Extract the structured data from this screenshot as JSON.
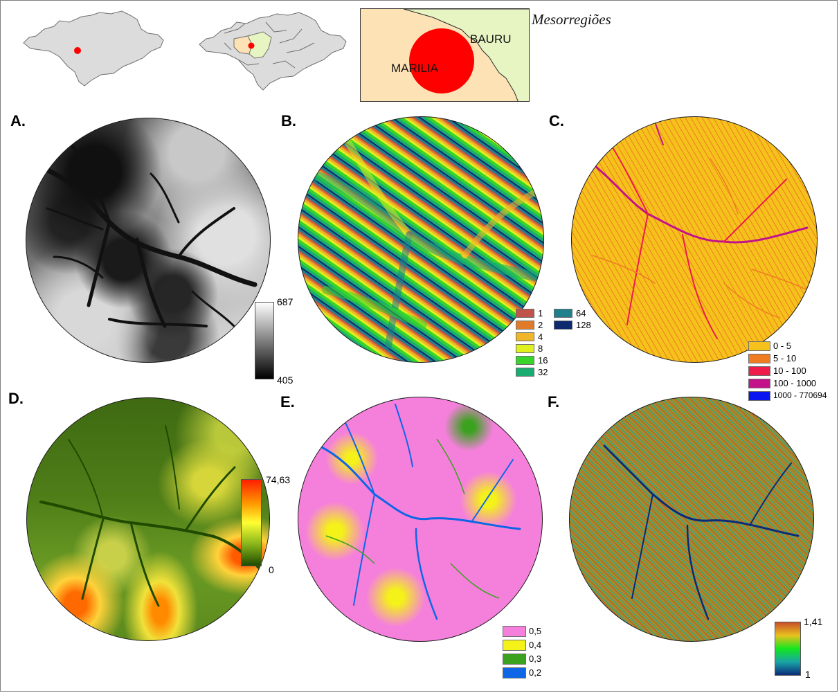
{
  "inset": {
    "title": "Mesorregiões",
    "region_labels": [
      "BAURU",
      "MARILIA"
    ],
    "colors": {
      "marilia": "#fde2b5",
      "bauru": "#e6f5c2",
      "marker": "#ff0000",
      "state": "#dcdcdc"
    }
  },
  "panels": {
    "A": {
      "letter": "A.",
      "legend_type": "ramp",
      "ramp_max": "687",
      "ramp_min": "405",
      "ramp_colors": [
        "#ffffff",
        "#000000"
      ]
    },
    "B": {
      "letter": "B.",
      "legend_type": "classes",
      "classes": [
        {
          "label": "1",
          "color": "#c0544a"
        },
        {
          "label": "2",
          "color": "#e07b2a"
        },
        {
          "label": "4",
          "color": "#f0b62a"
        },
        {
          "label": "8",
          "color": "#dff01e"
        },
        {
          "label": "16",
          "color": "#38d42a"
        },
        {
          "label": "32",
          "color": "#1aac70"
        },
        {
          "label": "64",
          "color": "#1f7f8c"
        },
        {
          "label": "128",
          "color": "#0d2a6e"
        }
      ]
    },
    "C": {
      "letter": "C.",
      "legend_type": "classes",
      "classes": [
        {
          "label": "0 - 5",
          "color": "#f5c21b"
        },
        {
          "label": "5 - 10",
          "color": "#f07c22"
        },
        {
          "label": "10 - 100",
          "color": "#ef1b4b"
        },
        {
          "label": "100 - 1000",
          "color": "#c4128a"
        },
        {
          "label": "1000 - 770694",
          "color": "#0a14f0"
        }
      ]
    },
    "D": {
      "letter": "D.",
      "legend_type": "ramp",
      "ramp_max": "74,63",
      "ramp_min": "0",
      "ramp_colors": [
        "#ff1f00",
        "#ff9a00",
        "#ffff33",
        "#88b51a",
        "#1f4a00"
      ]
    },
    "E": {
      "letter": "E.",
      "legend_type": "classes",
      "classes": [
        {
          "label": "0,5",
          "color": "#f580dc"
        },
        {
          "label": "0,4",
          "color": "#f4f218"
        },
        {
          "label": "0,3",
          "color": "#3aa21e"
        },
        {
          "label": "0,2",
          "color": "#0d66e6"
        }
      ]
    },
    "F": {
      "letter": "F.",
      "legend_type": "ramp",
      "ramp_max": "1,41",
      "ramp_min": "1",
      "ramp_colors": [
        "#c9502a",
        "#e8c21e",
        "#12e61e",
        "#1aa5a5",
        "#0a2a7a"
      ]
    }
  }
}
